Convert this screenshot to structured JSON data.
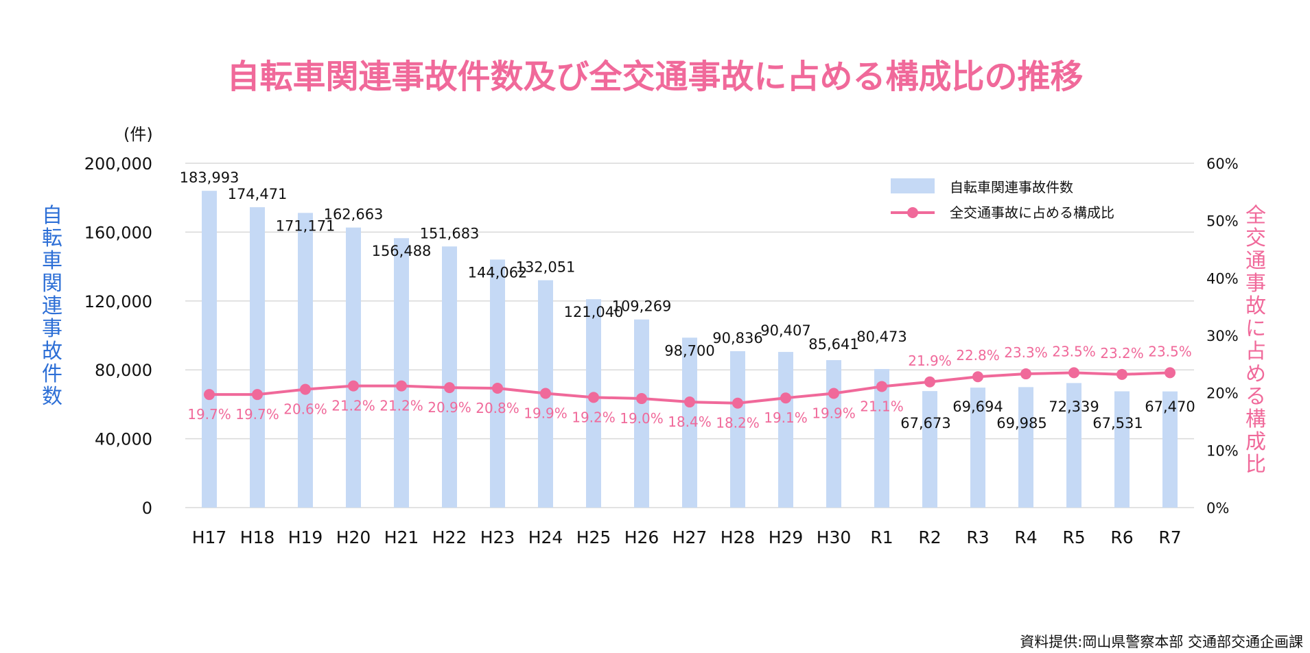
{
  "chart_data": {
    "type": "bar",
    "title": "自転車関連事故件数及び全交通事故に占める構成比の推移",
    "unit_label": "(件)",
    "ylabel": "自転車関連事故件数",
    "y2label": "全交通事故に占める構成比",
    "categories": [
      "H17",
      "H18",
      "H19",
      "H20",
      "H21",
      "H22",
      "H23",
      "H24",
      "H25",
      "H26",
      "H27",
      "H28",
      "H29",
      "H30",
      "R1",
      "R2",
      "R3",
      "R4",
      "R5",
      "R6",
      "R7"
    ],
    "series": [
      {
        "name": "自転車関連事故件数",
        "type": "bar",
        "axis": "left",
        "values": [
          183993,
          174471,
          171171,
          162663,
          156488,
          151683,
          144062,
          132051,
          121040,
          109269,
          98700,
          90836,
          90407,
          85641,
          80473,
          67673,
          69694,
          69985,
          72339,
          67531,
          67470
        ],
        "labels": [
          "183,993",
          "174,471",
          "171,171",
          "162,663",
          "156,488",
          "151,683",
          "144,062",
          "132,051",
          "121,040",
          "109,269",
          "98,700",
          "90,836",
          "90,407",
          "85,641",
          "80,473",
          "67,673",
          "69,694",
          "69,985",
          "72,339",
          "67,531",
          "67,470"
        ]
      },
      {
        "name": "全交通事故に占める構成比",
        "type": "line",
        "axis": "right",
        "values": [
          19.7,
          19.7,
          20.6,
          21.2,
          21.2,
          20.9,
          20.8,
          19.9,
          19.2,
          19.0,
          18.4,
          18.2,
          19.1,
          19.9,
          21.1,
          21.9,
          22.8,
          23.3,
          23.5,
          23.2,
          23.5
        ],
        "labels": [
          "19.7%",
          "19.7%",
          "20.6%",
          "21.2%",
          "21.2%",
          "20.9%",
          "20.8%",
          "19.9%",
          "19.2%",
          "19.0%",
          "18.4%",
          "18.2%",
          "19.1%",
          "19.9%",
          "21.1%",
          "21.9%",
          "22.8%",
          "23.3%",
          "23.5%",
          "23.2%",
          "23.5%"
        ]
      }
    ],
    "ylim": [
      0,
      200000
    ],
    "y_ticks": [
      "0",
      "40,000",
      "80,000",
      "120,000",
      "160,000",
      "200,000"
    ],
    "y2lim": [
      0,
      60
    ],
    "y2_ticks": [
      "0%",
      "10%",
      "20%",
      "30%",
      "40%",
      "50%",
      "60%"
    ],
    "grid": true,
    "legend_position": "top-right",
    "source": "資料提供:岡山県警察本部 交通部交通企画課",
    "colors": {
      "bar": "#c5d9f5",
      "line": "#f0699a",
      "title": "#f0699a",
      "left_axis_label": "#2d6fd6",
      "grid": "#d9d9d9"
    }
  }
}
